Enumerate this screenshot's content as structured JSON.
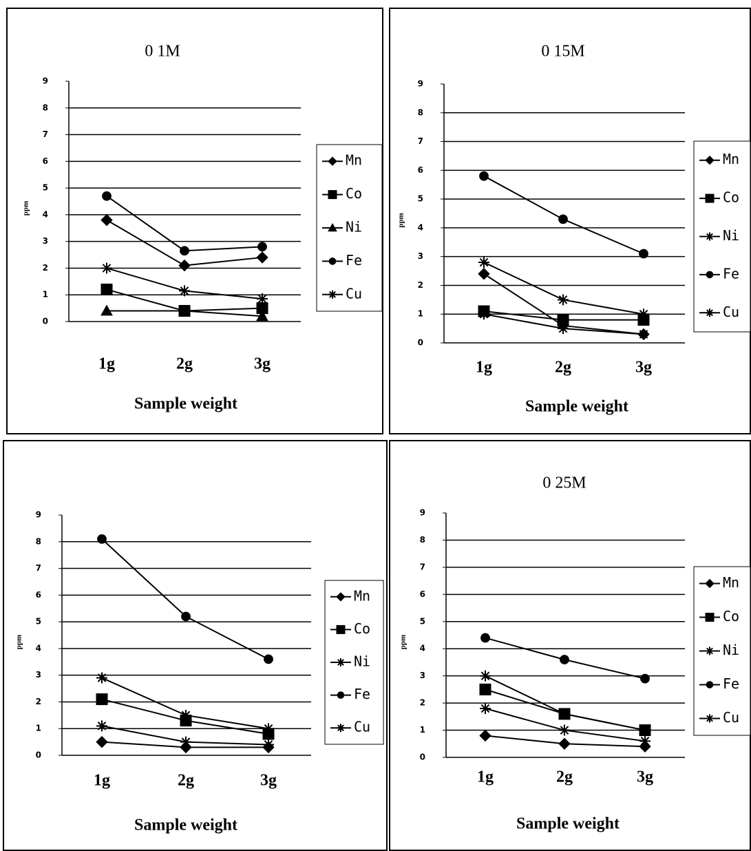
{
  "chart_data": [
    {
      "type": "line",
      "title": "0 1M",
      "categories": [
        "1g",
        "2g",
        "3g"
      ],
      "xlabel": "Sample weight",
      "ylabel": "ppm",
      "ylim": [
        0,
        9
      ],
      "yticks": [
        0,
        1,
        2,
        3,
        4,
        5,
        6,
        7,
        8,
        9
      ],
      "grid": true,
      "series": [
        {
          "name": "Mn",
          "color": "#000000",
          "marker": "diamond",
          "values": [
            3.8,
            2.1,
            2.4
          ]
        },
        {
          "name": "Co",
          "color": "#000000",
          "marker": "square",
          "values": [
            1.2,
            0.4,
            0.5
          ]
        },
        {
          "name": "Ni",
          "color": "#000000",
          "marker": "triangle",
          "values": [
            0.4,
            0.4,
            0.2
          ]
        },
        {
          "name": "Fe",
          "color": "#000000",
          "marker": "circle",
          "values": [
            4.7,
            2.65,
            2.8
          ]
        },
        {
          "name": "Cu",
          "color": "#000000",
          "marker": "star",
          "values": [
            2.0,
            1.15,
            0.85
          ]
        }
      ]
    },
    {
      "type": "line",
      "title": "0 15M",
      "categories": [
        "1g",
        "2g",
        "3g"
      ],
      "xlabel": "Sample weight",
      "ylabel": "ppm",
      "ylim": [
        0,
        9
      ],
      "yticks": [
        0,
        1,
        2,
        3,
        4,
        5,
        6,
        7,
        8,
        9
      ],
      "grid": true,
      "series": [
        {
          "name": "Mn",
          "color": "#000000",
          "marker": "diamond",
          "values": [
            2.4,
            0.6,
            0.3
          ]
        },
        {
          "name": "Co",
          "color": "#000000",
          "marker": "square",
          "values": [
            1.1,
            0.8,
            0.8
          ]
        },
        {
          "name": "Ni",
          "color": "#000000",
          "marker": "star",
          "values": [
            1.0,
            0.5,
            0.3
          ]
        },
        {
          "name": "Fe",
          "color": "#000000",
          "marker": "circle",
          "values": [
            5.8,
            4.3,
            3.1
          ]
        },
        {
          "name": "Cu",
          "color": "#000000",
          "marker": "star",
          "values": [
            2.8,
            1.5,
            1.0
          ]
        }
      ]
    },
    {
      "type": "line",
      "categories": [
        "1g",
        "2g",
        "3g"
      ],
      "xlabel": "Sample weight",
      "ylabel": "ppm",
      "ylim": [
        0,
        9
      ],
      "yticks": [
        0,
        1,
        2,
        3,
        4,
        5,
        6,
        7,
        8,
        9
      ],
      "grid": true,
      "series": [
        {
          "name": "Mn",
          "color": "#000000",
          "marker": "diamond",
          "values": [
            0.5,
            0.3,
            0.3
          ]
        },
        {
          "name": "Co",
          "color": "#000000",
          "marker": "square",
          "values": [
            2.1,
            1.3,
            0.8
          ]
        },
        {
          "name": "Ni",
          "color": "#000000",
          "marker": "star",
          "values": [
            1.1,
            0.5,
            0.4
          ]
        },
        {
          "name": "Fe",
          "color": "#000000",
          "marker": "circle",
          "values": [
            8.1,
            5.2,
            3.6
          ]
        },
        {
          "name": "Cu",
          "color": "#000000",
          "marker": "star",
          "values": [
            2.9,
            1.5,
            1.0
          ]
        }
      ]
    },
    {
      "type": "line",
      "title": "0 25M",
      "categories": [
        "1g",
        "2g",
        "3g"
      ],
      "xlabel": "Sample weight",
      "ylabel": "ppm",
      "ylim": [
        0,
        9
      ],
      "yticks": [
        0,
        1,
        2,
        3,
        4,
        5,
        6,
        7,
        8,
        9
      ],
      "grid": true,
      "series": [
        {
          "name": "Mn",
          "color": "#000000",
          "marker": "diamond",
          "values": [
            0.8,
            0.5,
            0.4
          ]
        },
        {
          "name": "Co",
          "color": "#000000",
          "marker": "square",
          "values": [
            2.5,
            1.6,
            1.0
          ]
        },
        {
          "name": "Ni",
          "color": "#000000",
          "marker": "star",
          "values": [
            1.8,
            1.0,
            0.6
          ]
        },
        {
          "name": "Fe",
          "color": "#000000",
          "marker": "circle",
          "values": [
            4.4,
            3.6,
            2.9
          ]
        },
        {
          "name": "Cu",
          "color": "#000000",
          "marker": "star",
          "values": [
            3.0,
            1.6,
            1.0
          ]
        }
      ]
    }
  ]
}
